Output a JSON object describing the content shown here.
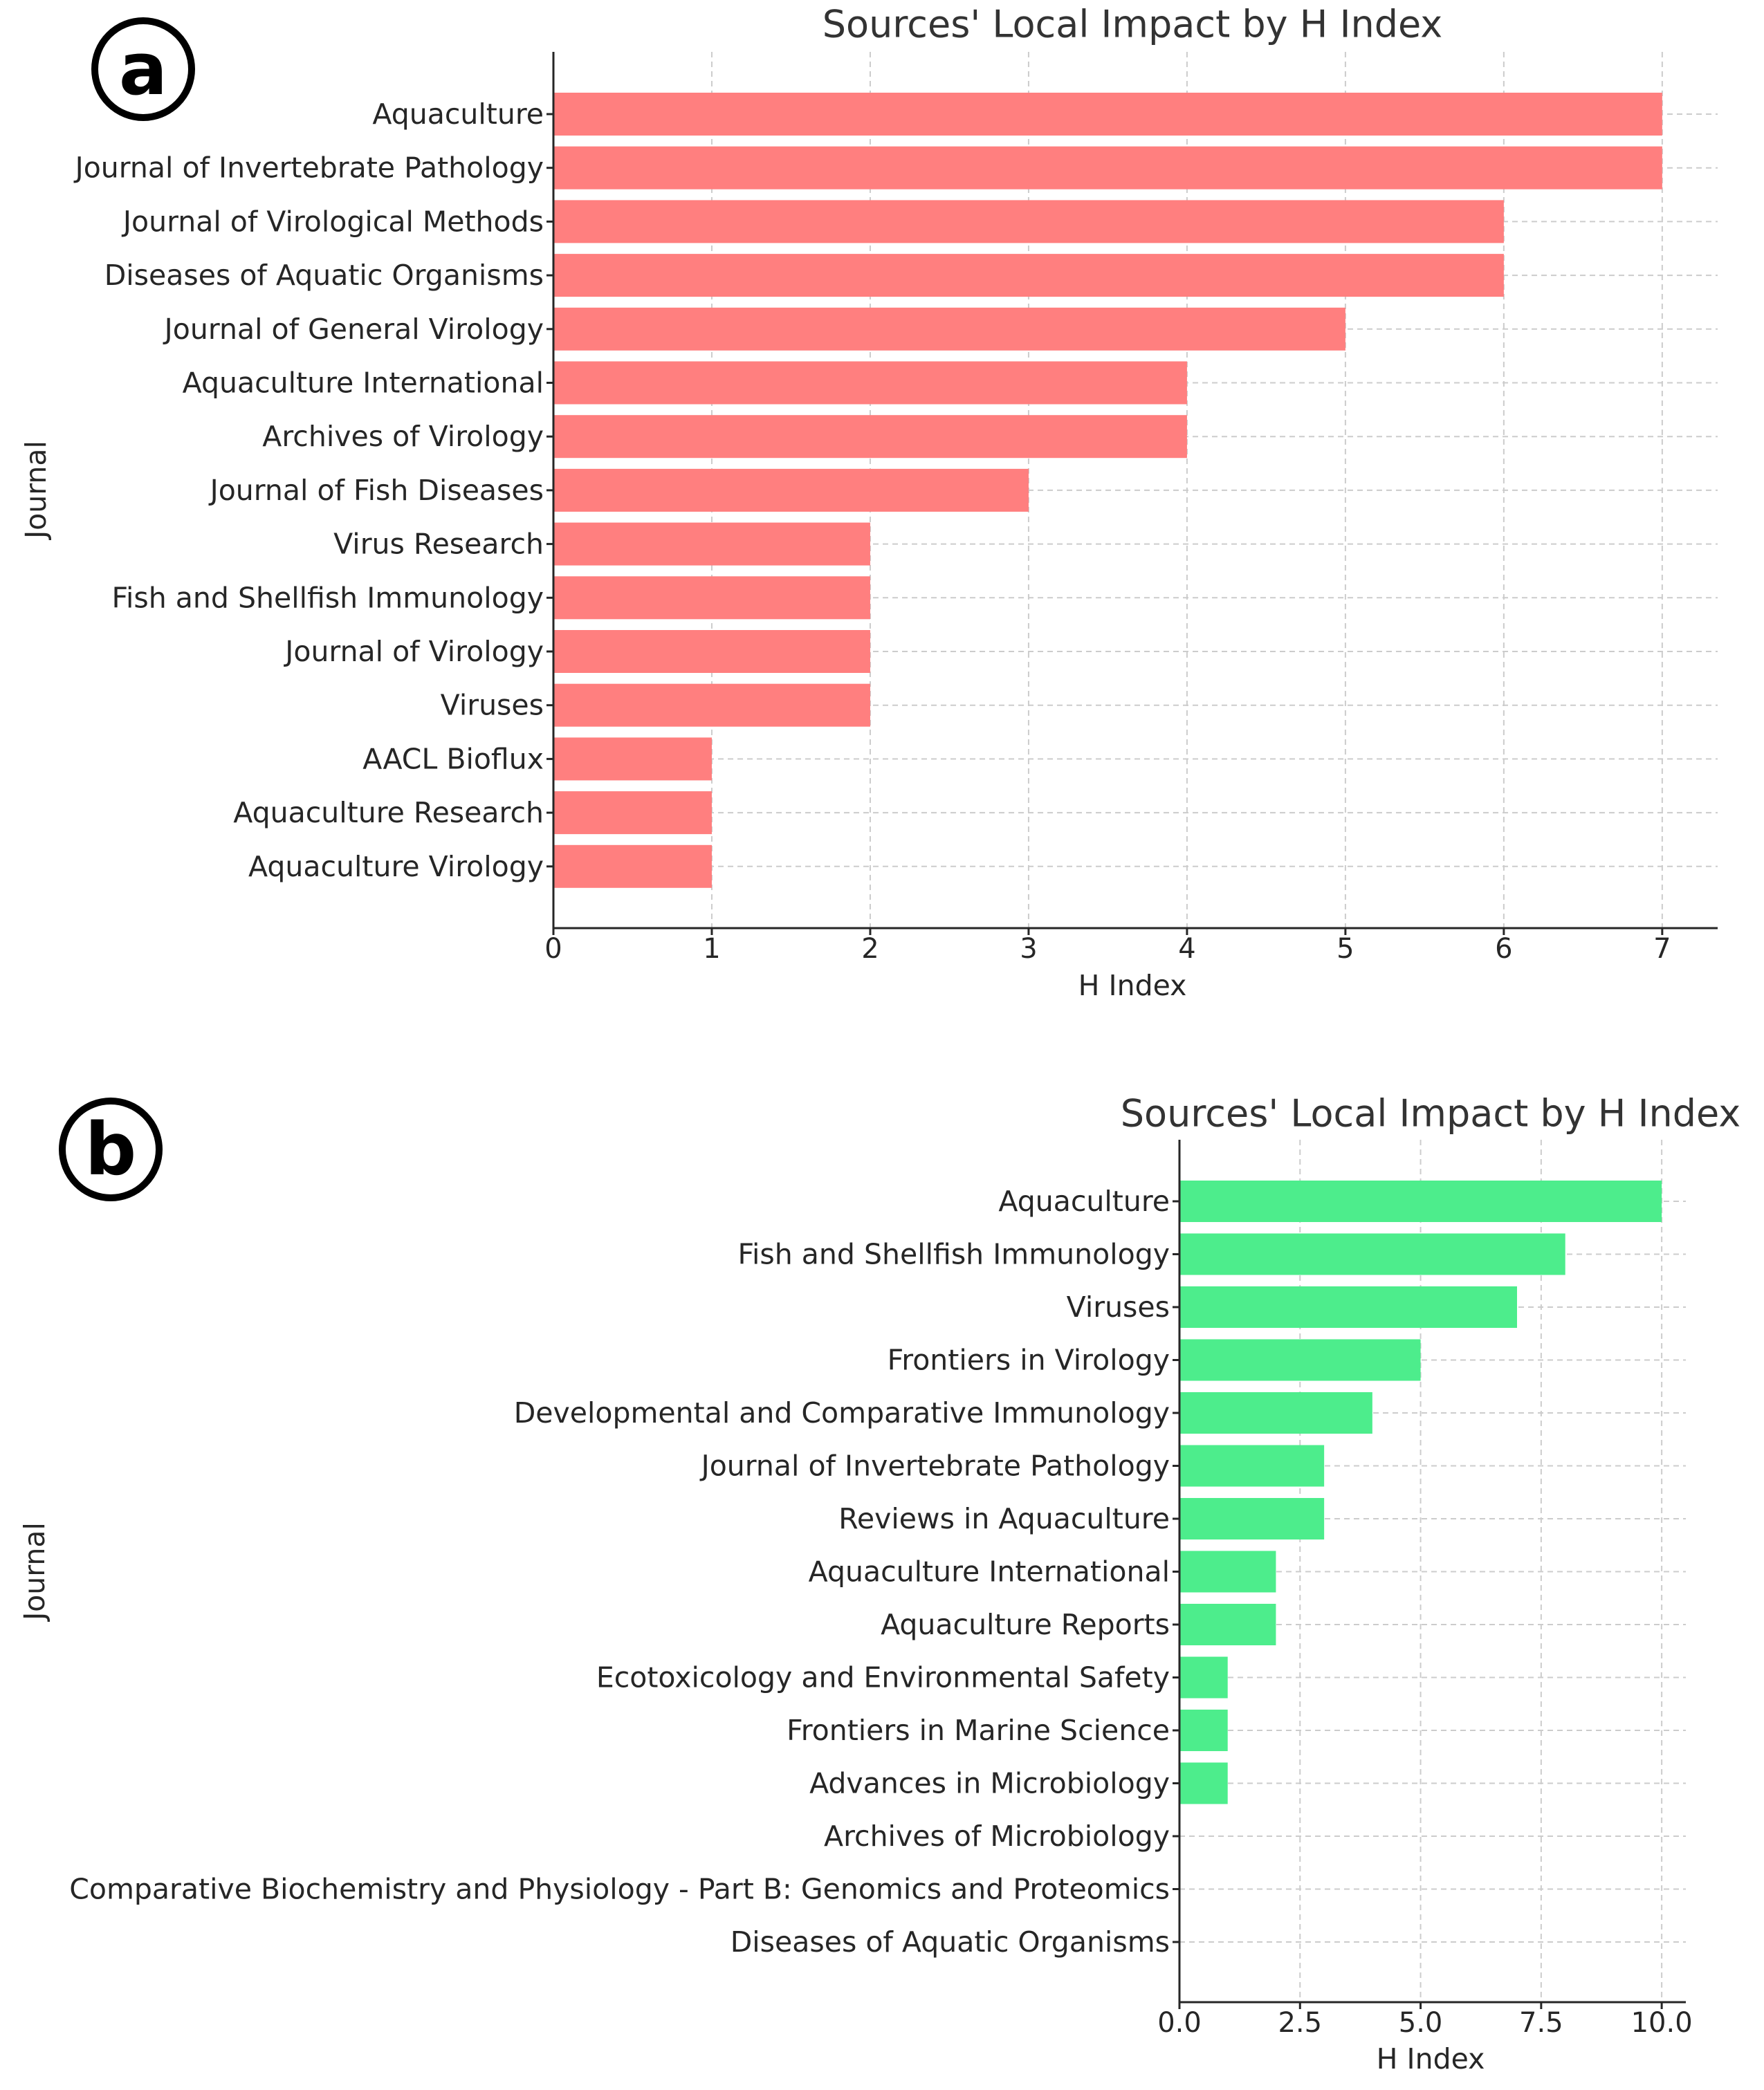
{
  "chart_data": [
    {
      "panel": "a",
      "type": "bar",
      "orientation": "horizontal",
      "title": "Sources' Local Impact by H Index",
      "xlabel": "H Index",
      "ylabel": "Journal",
      "xlim": [
        0,
        7.35
      ],
      "xticks": [
        0,
        1,
        2,
        3,
        4,
        5,
        6,
        7
      ],
      "xtick_labels": [
        "0",
        "1",
        "2",
        "3",
        "4",
        "5",
        "6",
        "7"
      ],
      "grid": true,
      "color": "#ff7f7f",
      "categories": [
        "Aquaculture",
        "Journal of Invertebrate Pathology",
        "Journal of Virological Methods",
        "Diseases of Aquatic Organisms",
        "Journal of General Virology",
        "Aquaculture International",
        "Archives of Virology",
        "Journal of Fish Diseases",
        "Virus Research",
        "Fish and Shellfish Immunology",
        "Journal of Virology",
        "Viruses",
        "AACL Bioflux",
        "Aquaculture Research",
        "Aquaculture Virology"
      ],
      "values": [
        7,
        7,
        6,
        6,
        5,
        4,
        4,
        3,
        2,
        2,
        2,
        2,
        1,
        1,
        1
      ]
    },
    {
      "panel": "b",
      "type": "bar",
      "orientation": "horizontal",
      "title": "Sources' Local Impact by H Index",
      "xlabel": "H Index",
      "ylabel": "Journal",
      "xlim": [
        0,
        10.5
      ],
      "xticks": [
        0,
        2.5,
        5,
        7.5,
        10
      ],
      "xtick_labels": [
        "0.0",
        "2.5",
        "5.0",
        "7.5",
        "10.0"
      ],
      "grid": true,
      "color": "#4ded8c",
      "categories": [
        "Aquaculture",
        "Fish and Shellfish Immunology",
        "Viruses",
        "Frontiers in Virology",
        "Developmental and Comparative Immunology",
        "Journal of Invertebrate Pathology",
        "Reviews in Aquaculture",
        "Aquaculture International",
        "Aquaculture Reports",
        "Ecotoxicology and Environmental Safety",
        "Frontiers in Marine Science",
        "Advances in Microbiology",
        "Archives of Microbiology",
        "Comparative Biochemistry and Physiology - Part B: Genomics and Proteomics",
        "Diseases of Aquatic Organisms"
      ],
      "values": [
        10,
        8,
        7,
        5,
        4,
        3,
        3,
        2,
        2,
        1,
        1,
        1,
        0,
        0,
        0
      ]
    }
  ]
}
